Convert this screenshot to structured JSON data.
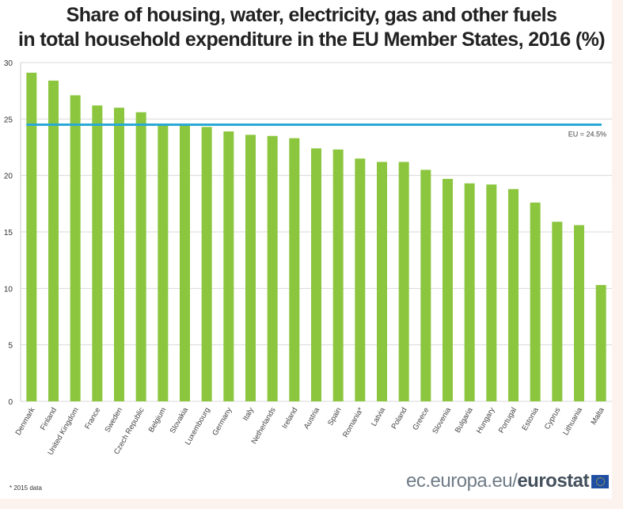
{
  "chart_data": {
    "type": "bar",
    "title": "Share of housing, water, electricity, gas and other fuels in total household expenditure in the EU Member States, 2016 (%)",
    "title_lines": [
      "Share of housing, water, electricity, gas and other fuels",
      "in total household expenditure in the EU Member States, 2016 (%)"
    ],
    "xlabel": "",
    "ylabel": "",
    "ylim": [
      0,
      30
    ],
    "yticks": [
      0,
      5,
      10,
      15,
      20,
      25,
      30
    ],
    "grid": true,
    "categories": [
      "Denmark",
      "Finland",
      "United Kingdom",
      "France",
      "Sweden",
      "Czech Republic",
      "Belgium",
      "Slovakia",
      "Luxembourg",
      "Germany",
      "Italy",
      "Netherlands",
      "Ireland",
      "Austria",
      "Spain",
      "Romania*",
      "Latvia",
      "Poland",
      "Greece",
      "Slovenia",
      "Bulgaria",
      "Hungary",
      "Portugal",
      "Estonia",
      "Cyprus",
      "Lithuania",
      "Malta"
    ],
    "values": [
      29.1,
      28.4,
      27.1,
      26.2,
      26.0,
      25.6,
      24.5,
      24.5,
      24.3,
      23.9,
      23.6,
      23.5,
      23.3,
      22.4,
      22.3,
      21.5,
      21.2,
      21.2,
      20.5,
      19.7,
      19.3,
      19.2,
      18.8,
      17.6,
      15.9,
      15.6,
      10.3
    ],
    "reference_line": {
      "label": "EU = 24.5%",
      "value": 24.5
    },
    "colors": {
      "bar": "#8cc63f",
      "reference_line": "#29a9d6",
      "grid": "#d9d9d9"
    }
  },
  "footnote": "* 2015 data",
  "source": {
    "prefix": "ec.europa.eu/",
    "brand": "eurostat"
  }
}
